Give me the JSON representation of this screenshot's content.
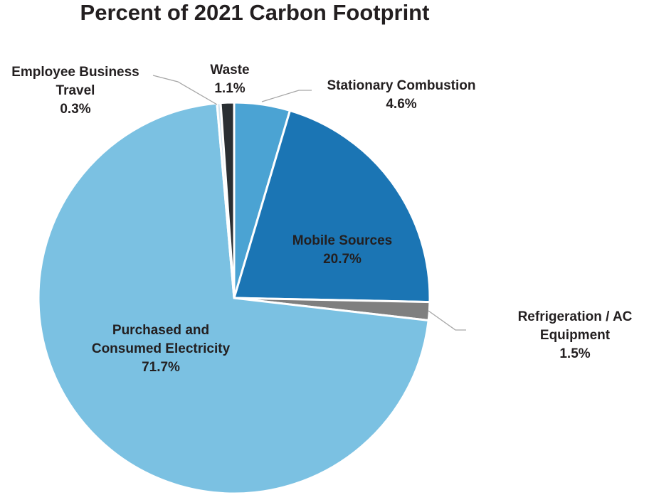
{
  "chart_data": {
    "type": "pie",
    "title": "Percent of 2021 Carbon Footprint",
    "slices": [
      {
        "label_lines": [
          "Stationary Combustion"
        ],
        "value": 4.6,
        "value_text": "4.6%",
        "color": "#4ba3d3"
      },
      {
        "label_lines": [
          "Mobile Sources"
        ],
        "value": 20.7,
        "value_text": "20.7%",
        "color": "#1b75b4"
      },
      {
        "label_lines": [
          "Refrigeration / AC",
          "Equipment"
        ],
        "value": 1.5,
        "value_text": "1.5%",
        "color": "#7f7f7f"
      },
      {
        "label_lines": [
          "Purchased and",
          "Consumed Electricity"
        ],
        "value": 71.7,
        "value_text": "71.7%",
        "color": "#7bc1e2"
      },
      {
        "label_lines": [
          "Employee Business",
          "Travel"
        ],
        "value": 0.3,
        "value_text": "0.3%",
        "color": "#cfe3ef"
      },
      {
        "label_lines": [
          "Waste"
        ],
        "value": 1.1,
        "value_text": "1.1%",
        "color": "#2a2f33"
      }
    ],
    "start": "12 o'clock",
    "direction": "clockwise",
    "legend": "none (data labels)"
  }
}
